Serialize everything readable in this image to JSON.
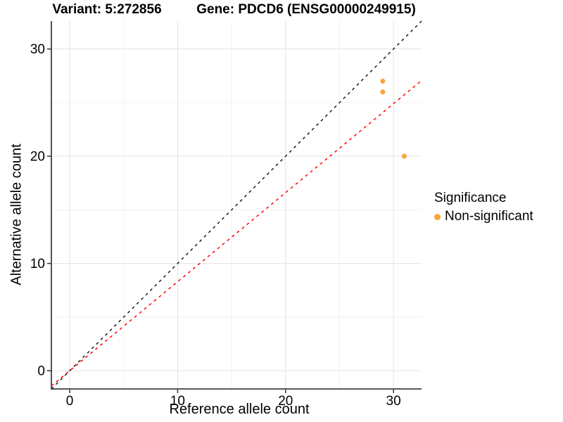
{
  "titles": {
    "left": "Variant: 5:272856",
    "right": "Gene: PDCD6 (ENSG00000249915)"
  },
  "axes": {
    "x_label": "Reference allele count",
    "y_label": "Alternative allele count"
  },
  "legend": {
    "title": "Significance",
    "items": [
      {
        "label": "Non-significant",
        "color": "#F9A43C"
      }
    ]
  },
  "chart_data": {
    "type": "scatter",
    "title": "Variant: 5:272856   Gene: PDCD6 (ENSG00000249915)",
    "xlabel": "Reference allele count",
    "ylabel": "Alternative allele count",
    "xlim": [
      -1.7,
      32.6
    ],
    "ylim": [
      -1.7,
      32.6
    ],
    "x_ticks": [
      0,
      10,
      20,
      30
    ],
    "y_ticks": [
      0,
      10,
      20,
      30
    ],
    "x_minor_ticks": [
      5,
      15,
      25
    ],
    "y_minor_ticks": [
      5,
      15,
      25
    ],
    "grid": true,
    "legend_position": "right",
    "series": [
      {
        "name": "Non-significant",
        "color": "#F9A43C",
        "points": [
          {
            "x": 29,
            "y": 27
          },
          {
            "x": 29,
            "y": 26
          },
          {
            "x": 31,
            "y": 20
          }
        ]
      }
    ],
    "reference_lines": [
      {
        "name": "identity-line",
        "slope": 1,
        "intercept": 0,
        "color": "#1a1a1a",
        "style": "dashed"
      },
      {
        "name": "red-dashed-line",
        "slope": 0.83,
        "intercept": 0,
        "color": "#FF0000",
        "style": "dashed"
      }
    ]
  },
  "colors": {
    "background": "#FFFFFF",
    "grid_major": "#E3E3E3",
    "grid_minor": "#F0F0F0",
    "axis_line": "#404040",
    "tick_mark": "#333333",
    "text": "#000000",
    "point": "#F9A43C"
  }
}
